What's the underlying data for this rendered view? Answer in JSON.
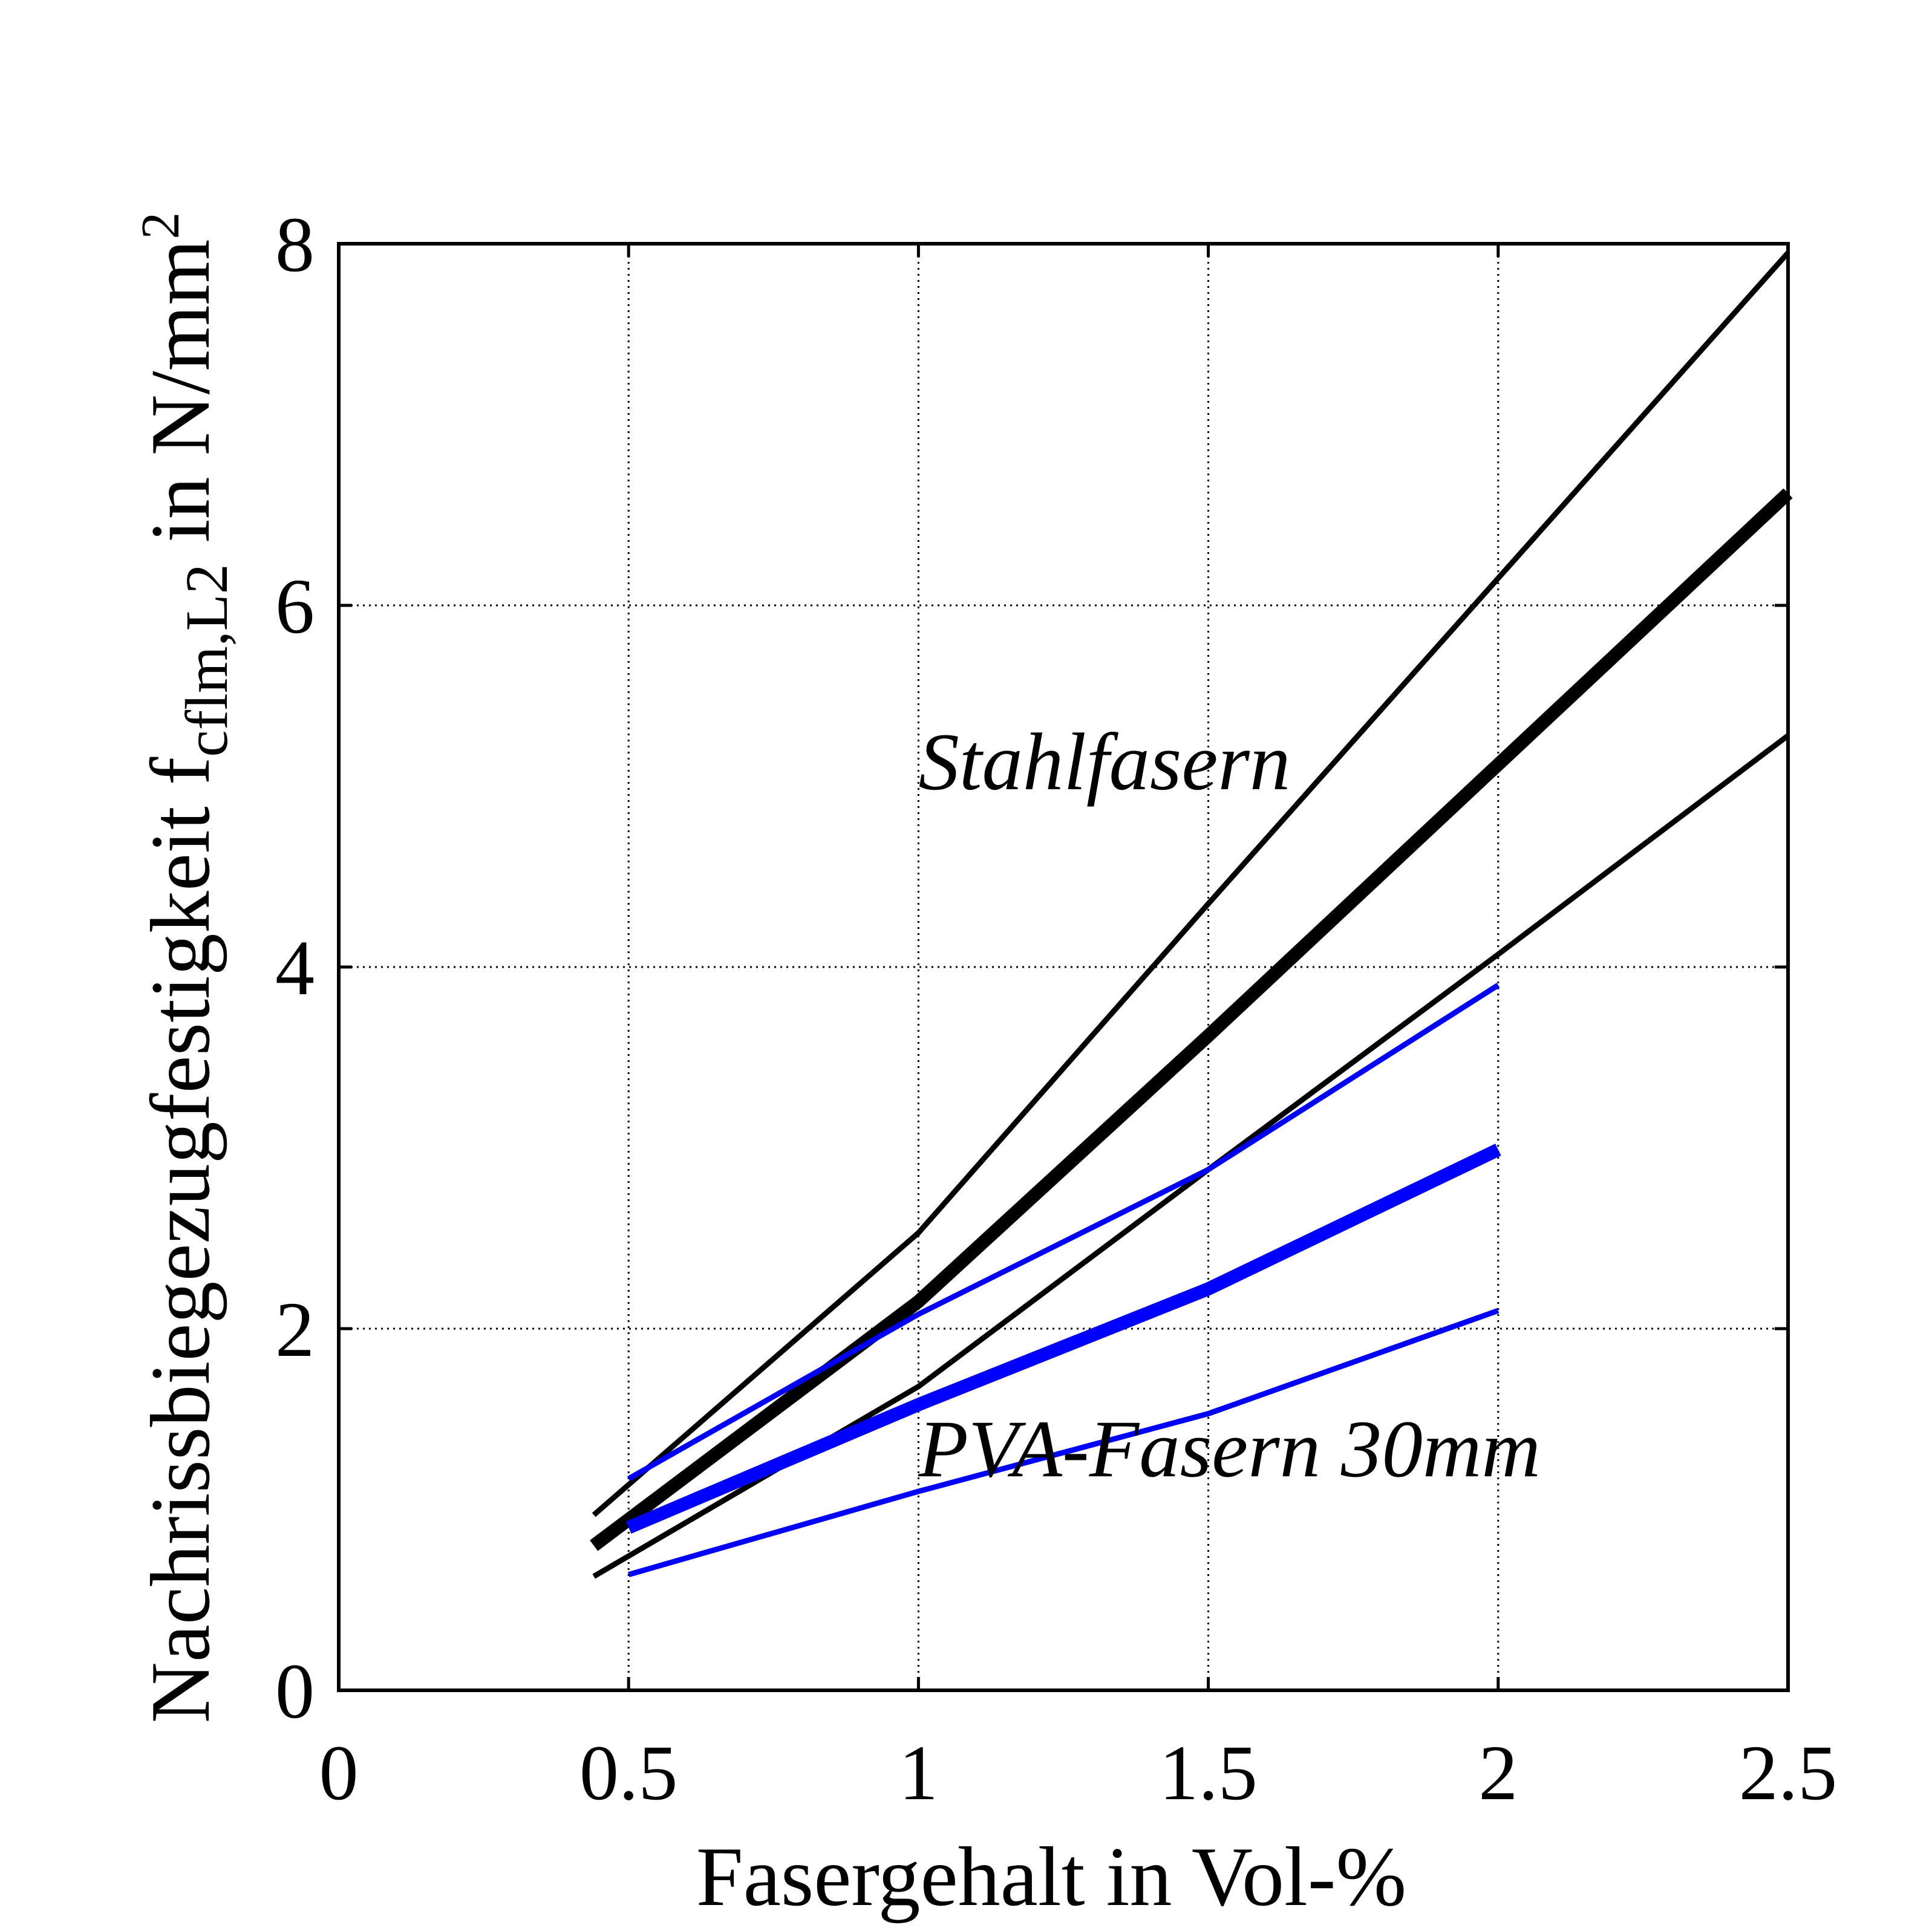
{
  "chart_data": {
    "type": "line",
    "title": "",
    "xlabel": "Fasergehalt in Vol-%",
    "ylabel": {
      "main": "Nachrissbiegezugfestigkeit f",
      "subscript": "cflm,L2",
      "unit": " in N/mm",
      "superscript": "2"
    },
    "xlim": [
      0,
      2.5
    ],
    "ylim": [
      0,
      8
    ],
    "xticks": [
      0,
      0.5,
      1,
      1.5,
      2,
      2.5
    ],
    "xtick_labels": [
      "0",
      "0.5",
      "1",
      "1.5",
      "2",
      "2.5"
    ],
    "yticks": [
      0,
      2,
      4,
      6,
      8
    ],
    "ytick_labels": [
      "0",
      "2",
      "4",
      "6",
      "8"
    ],
    "grid": true,
    "grid_style": "dotted",
    "legend": "none",
    "annotations": [
      {
        "text": "Stahlfasern",
        "x": 1.0,
        "y": 4.95
      },
      {
        "text": "PVA-Fasern 30mm",
        "x": 1.0,
        "y": 1.15
      }
    ],
    "series": [
      {
        "name": "Stahlfasern upper",
        "group": "Stahlfasern",
        "role": "upper",
        "color": "#000000",
        "weight": "thin",
        "x": [
          0.44,
          1.0,
          1.5,
          2.0,
          2.5
        ],
        "y": [
          0.97,
          2.53,
          4.35,
          6.15,
          7.95
        ]
      },
      {
        "name": "Stahlfasern mean",
        "group": "Stahlfasern",
        "role": "mean",
        "color": "#000000",
        "weight": "thick",
        "x": [
          0.44,
          1.0,
          1.5,
          2.0,
          2.5
        ],
        "y": [
          0.8,
          2.15,
          3.62,
          5.12,
          6.62
        ]
      },
      {
        "name": "Stahlfasern lower",
        "group": "Stahlfasern",
        "role": "lower",
        "color": "#000000",
        "weight": "thin",
        "x": [
          0.44,
          1.0,
          1.5,
          2.0,
          2.5
        ],
        "y": [
          0.63,
          1.68,
          2.88,
          4.07,
          5.28
        ]
      },
      {
        "name": "PVA-Fasern 30mm upper",
        "group": "PVA-Fasern 30mm",
        "role": "upper",
        "color": "#0000ff",
        "weight": "thin",
        "x": [
          0.5,
          1.0,
          1.5,
          2.0
        ],
        "y": [
          1.17,
          2.08,
          2.88,
          3.9
        ]
      },
      {
        "name": "PVA-Fasern 30mm mean",
        "group": "PVA-Fasern 30mm",
        "role": "mean",
        "color": "#0000ff",
        "weight": "thick",
        "x": [
          0.5,
          1.0,
          1.5,
          2.0
        ],
        "y": [
          0.9,
          1.58,
          2.22,
          2.99
        ]
      },
      {
        "name": "PVA-Fasern 30mm lower",
        "group": "PVA-Fasern 30mm",
        "role": "lower",
        "color": "#0000ff",
        "weight": "thin",
        "x": [
          0.5,
          1.0,
          1.5,
          2.0
        ],
        "y": [
          0.64,
          1.1,
          1.53,
          2.1
        ]
      }
    ]
  }
}
